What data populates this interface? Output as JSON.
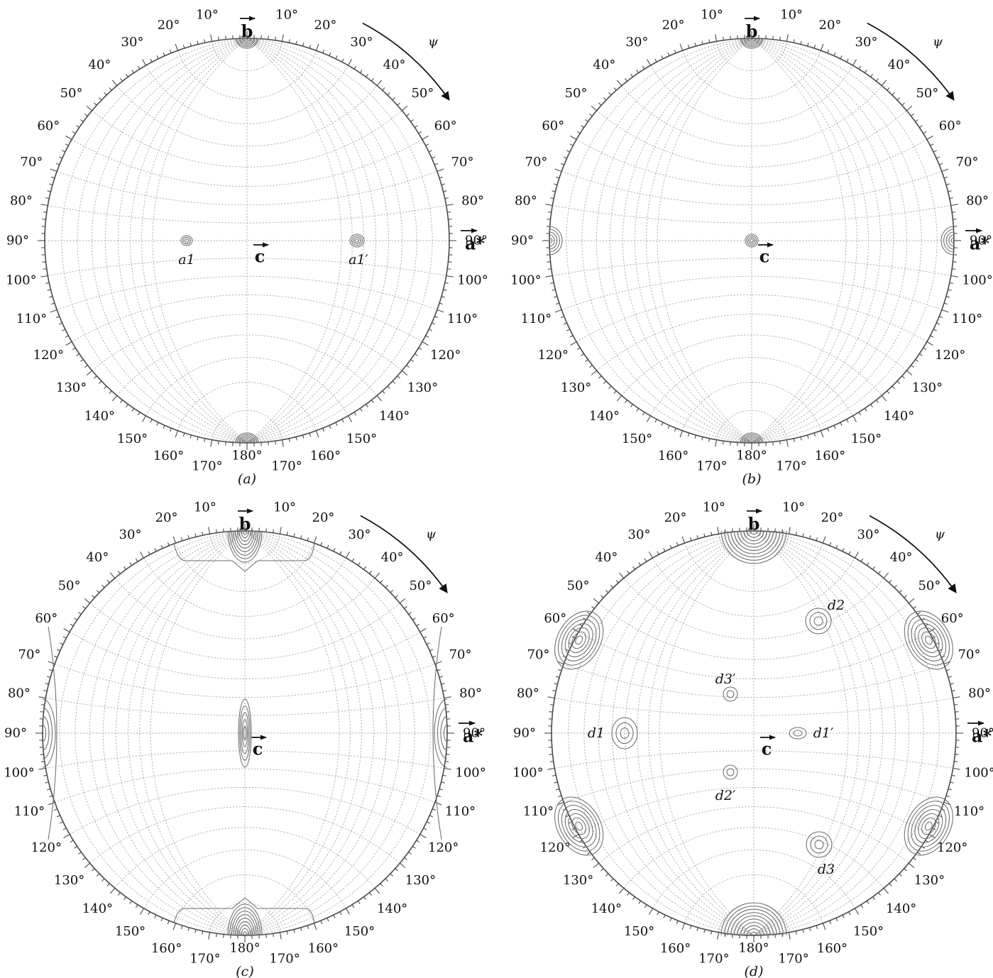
{
  "colors": {
    "grid": "#a9a9a9",
    "rim": "#4a4a4a",
    "contour": "#6d6d6d",
    "text": "#111111"
  },
  "axis_labels": {
    "b": "b",
    "a_star": "a*",
    "c": "c",
    "psi": "ψ"
  },
  "psi_labels_top": [
    "10°",
    "20°",
    "30°",
    "40°",
    "50°",
    "60°",
    "70°",
    "80°",
    "90°",
    "100°",
    "110°",
    "120°",
    "130°",
    "140°",
    "150°",
    "160°",
    "170°",
    "180°"
  ],
  "panels": [
    {
      "id": "a",
      "caption": "(a)",
      "spots": [
        {
          "label": "a1"
        },
        {
          "label": "a1′"
        }
      ]
    },
    {
      "id": "b",
      "caption": "(b)",
      "spots": []
    },
    {
      "id": "c",
      "caption": "(c)",
      "spots": []
    },
    {
      "id": "d",
      "caption": "(d)",
      "spots": [
        {
          "label": "d1"
        },
        {
          "label": "d1′"
        },
        {
          "label": "d2"
        },
        {
          "label": "d2′"
        },
        {
          "label": "d3"
        },
        {
          "label": "d3′"
        }
      ]
    }
  ]
}
